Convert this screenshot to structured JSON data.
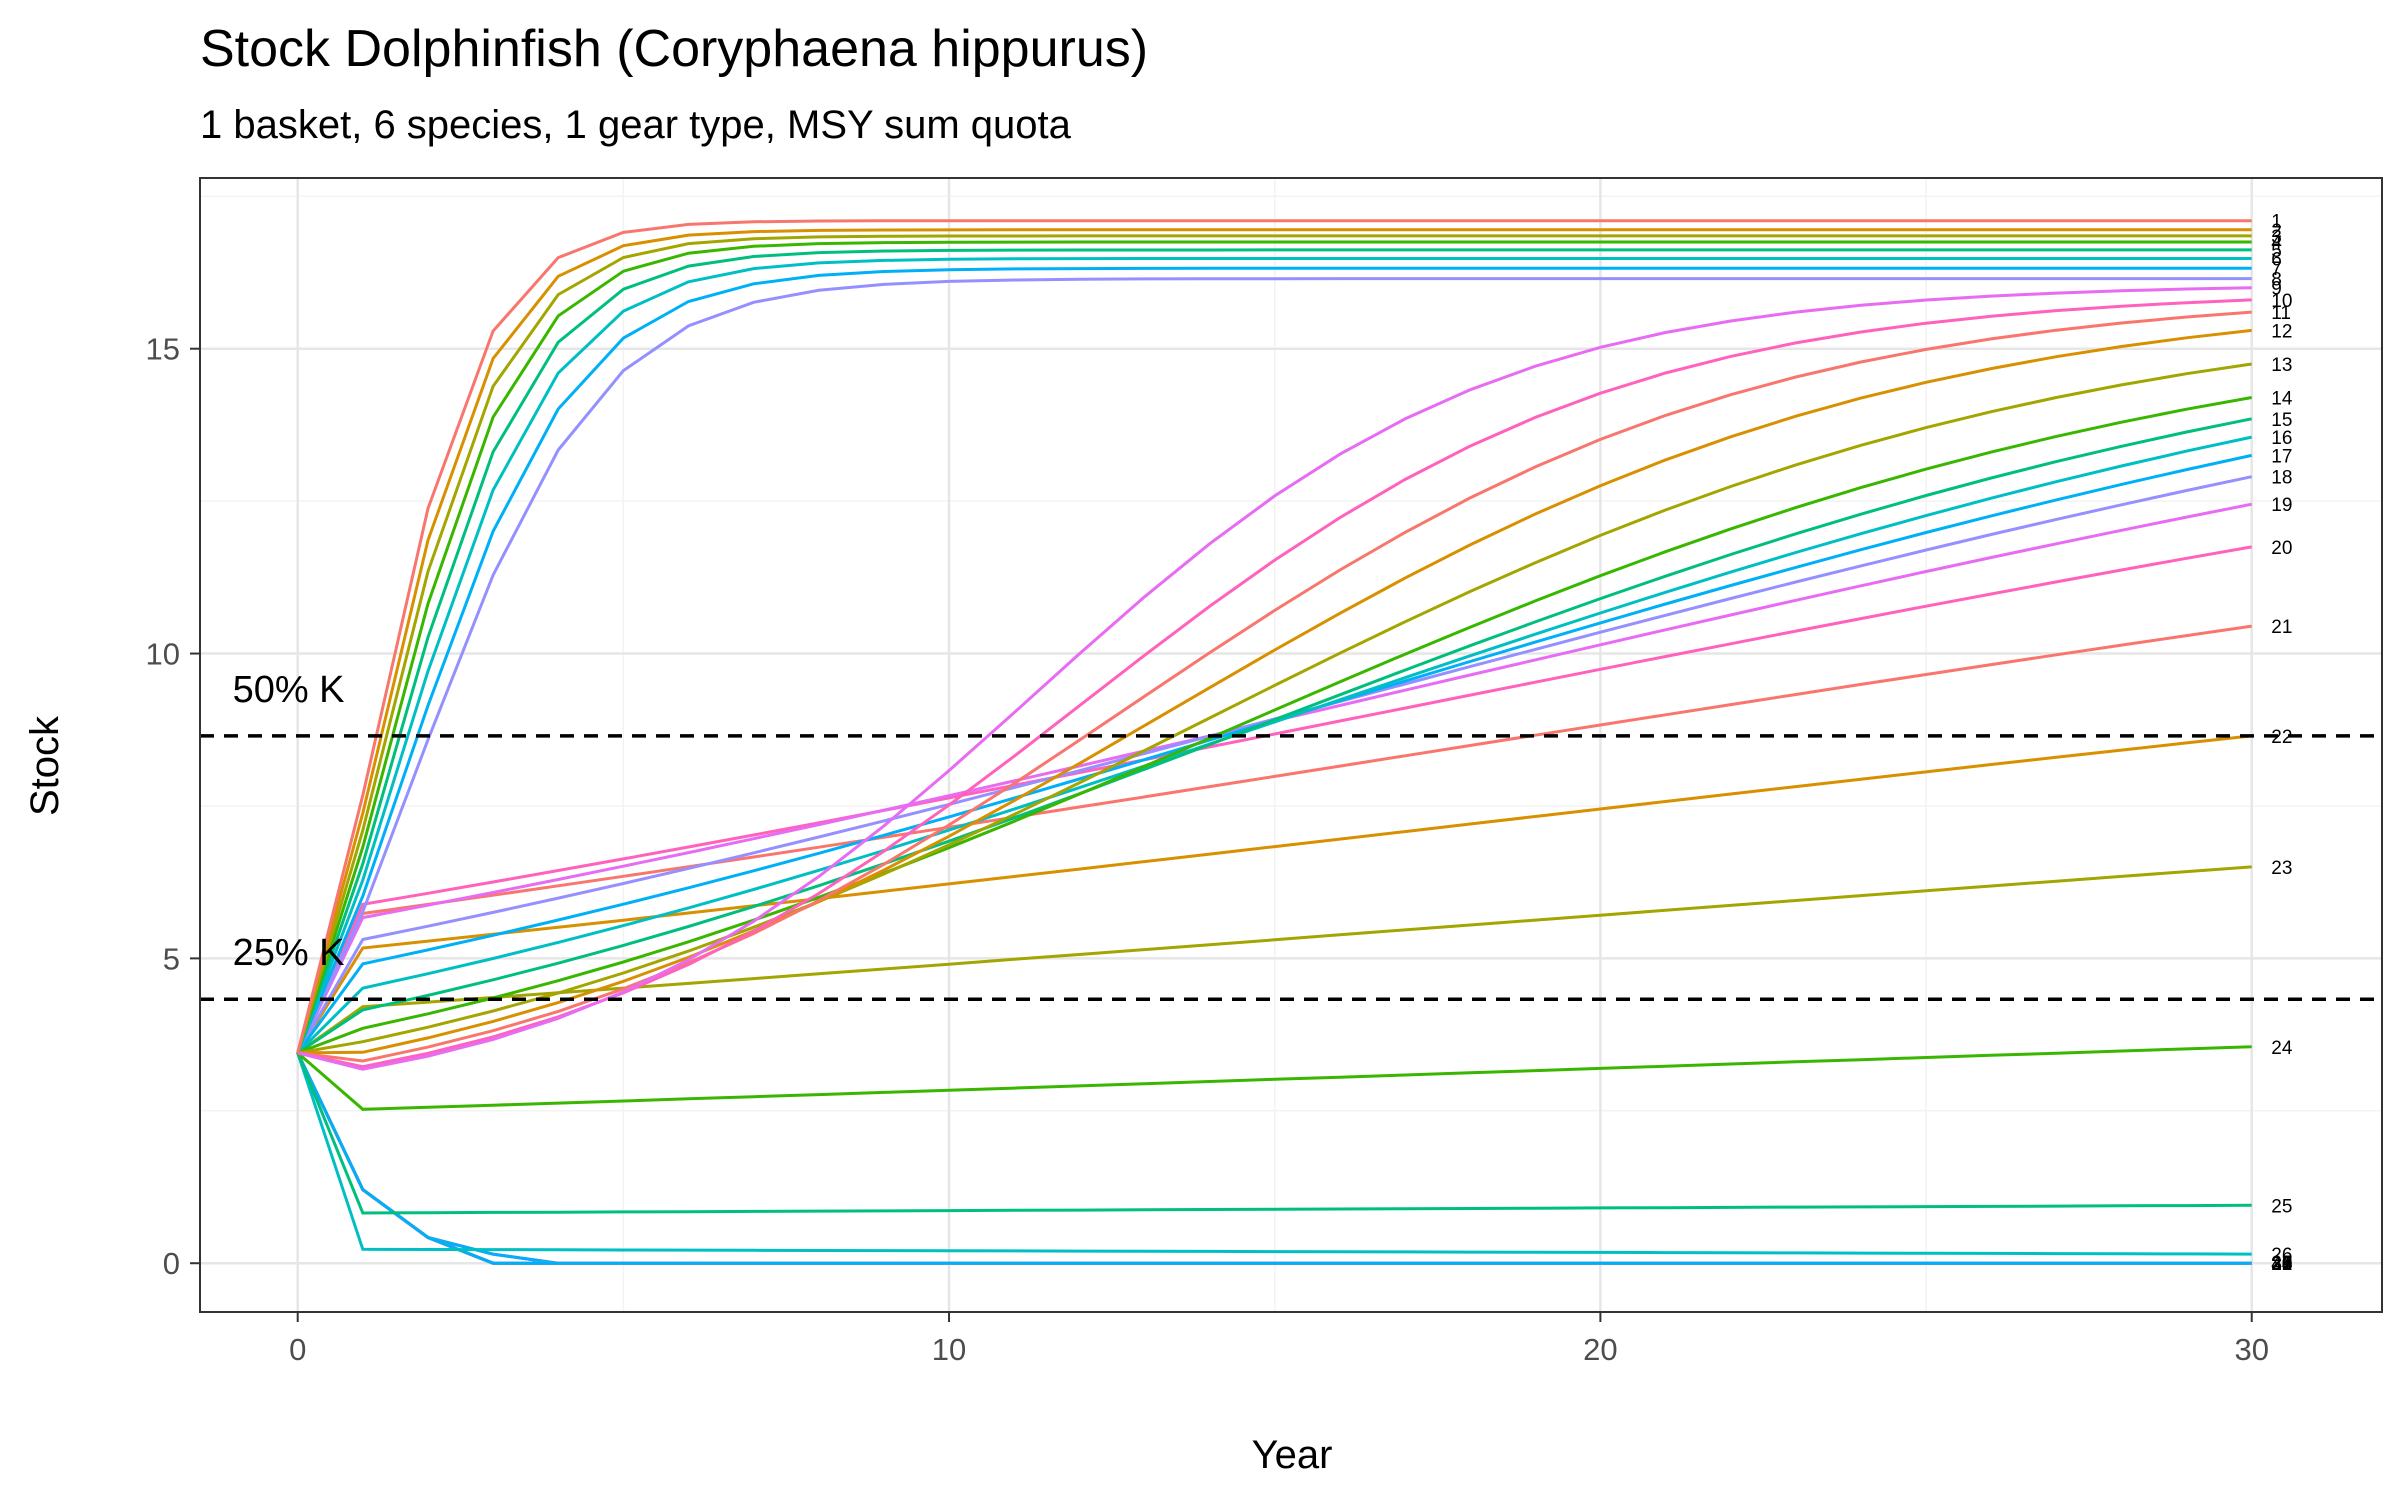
{
  "chart_data": {
    "type": "line",
    "title": "Stock Dolphinfish (Coryphaena hippurus)",
    "subtitle": "1 basket, 6 species, 1 gear type, MSY sum quota",
    "xlabel": "Year",
    "ylabel": "Stock",
    "xlim": [
      -1.5,
      32
    ],
    "ylim": [
      -0.8,
      17.8
    ],
    "x_ticks": [
      0,
      10,
      20,
      30
    ],
    "y_ticks": [
      0,
      5,
      10,
      15
    ],
    "grid": true,
    "legend": "none",
    "initial_stock": 3.45,
    "carrying_capacity": 17.3,
    "reference_lines": [
      {
        "label": "50% K",
        "y": 8.65
      },
      {
        "label": "25% K",
        "y": 4.33
      }
    ],
    "series_colors": [
      "#F8766D",
      "#D89000",
      "#A3A500",
      "#39B600",
      "#00BF7D",
      "#00BFC4",
      "#00B0F6",
      "#9590FF",
      "#E76BF3",
      "#FF62BC"
    ],
    "series": [
      {
        "name": "1",
        "final": 17.1
      },
      {
        "name": "2",
        "final": 16.95
      },
      {
        "name": "3",
        "final": 16.85
      },
      {
        "name": "4",
        "final": 16.75
      },
      {
        "name": "5",
        "final": 16.62
      },
      {
        "name": "6",
        "final": 16.48
      },
      {
        "name": "7",
        "final": 16.32
      },
      {
        "name": "8",
        "final": 16.15
      },
      {
        "name": "9",
        "final": 16.0
      },
      {
        "name": "10",
        "final": 15.8
      },
      {
        "name": "11",
        "final": 15.6
      },
      {
        "name": "12",
        "final": 15.3
      },
      {
        "name": "13",
        "final": 14.75
      },
      {
        "name": "14",
        "final": 14.2
      },
      {
        "name": "15",
        "final": 13.85
      },
      {
        "name": "16",
        "final": 13.55
      },
      {
        "name": "17",
        "final": 13.25
      },
      {
        "name": "18",
        "final": 12.9
      },
      {
        "name": "19",
        "final": 12.45
      },
      {
        "name": "20",
        "final": 11.75
      },
      {
        "name": "21",
        "final": 10.45
      },
      {
        "name": "22",
        "final": 8.65
      },
      {
        "name": "23",
        "final": 6.5
      },
      {
        "name": "24",
        "final": 3.55
      },
      {
        "name": "25",
        "final": 0.95
      },
      {
        "name": "26",
        "final": 0.15
      },
      {
        "name": "27",
        "final": 0.02
      },
      {
        "name": "28",
        "final": 0.0
      },
      {
        "name": "29",
        "final": 0.0
      },
      {
        "name": "30",
        "final": 0.0
      },
      {
        "name": "31",
        "final": 0.0
      },
      {
        "name": "32",
        "final": 0.0
      },
      {
        "name": "33",
        "final": 0.0
      },
      {
        "name": "34",
        "final": 0.0
      },
      {
        "name": "35",
        "final": 0.0
      },
      {
        "name": "36",
        "final": 0.0
      },
      {
        "name": "37",
        "final": 0.0
      },
      {
        "name": "38",
        "final": 0.0
      },
      {
        "name": "39",
        "final": 0.0
      },
      {
        "name": "40",
        "final": 0.0
      }
    ]
  }
}
